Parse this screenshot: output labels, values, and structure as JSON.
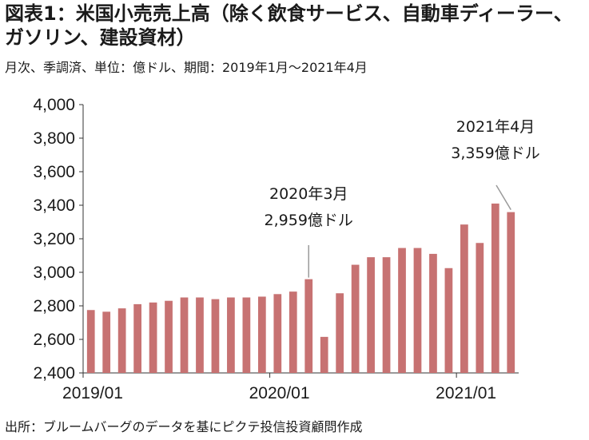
{
  "header": {
    "title": "図表1：米国小売売上高（除く飲食サービス、自動車ディーラー、ガソリン、建設資材）",
    "subtitle": "月次、季調済、単位：億ドル、期間：2019年1月～2021年4月"
  },
  "footer": {
    "source": "出所：ブルームバーグのデータを基にピクテ投信投資顧問作成"
  },
  "colors": {
    "bar": "#c77272",
    "axis": "#333333",
    "leader": "#9a9a9a"
  },
  "chart_data": {
    "type": "bar",
    "categories": [
      "2019/01",
      "2019/02",
      "2019/03",
      "2019/04",
      "2019/05",
      "2019/06",
      "2019/07",
      "2019/08",
      "2019/09",
      "2019/10",
      "2019/11",
      "2019/12",
      "2020/01",
      "2020/02",
      "2020/03",
      "2020/04",
      "2020/05",
      "2020/06",
      "2020/07",
      "2020/08",
      "2020/09",
      "2020/10",
      "2020/11",
      "2020/12",
      "2021/01",
      "2021/02",
      "2021/03",
      "2021/04"
    ],
    "values": [
      2775,
      2765,
      2785,
      2810,
      2820,
      2830,
      2850,
      2850,
      2840,
      2850,
      2850,
      2855,
      2870,
      2885,
      2959,
      2615,
      2875,
      3045,
      3090,
      3090,
      3145,
      3145,
      3110,
      3025,
      3285,
      3175,
      3410,
      3359
    ],
    "ylim": [
      2400,
      4000
    ],
    "yticks": [
      2400,
      2600,
      2800,
      3000,
      3200,
      3400,
      3600,
      3800,
      4000
    ],
    "ytick_labels": [
      "2,400",
      "2,600",
      "2,800",
      "3,000",
      "3,200",
      "3,400",
      "3,600",
      "3,800",
      "4,000"
    ],
    "xtick_labels": [
      {
        "index": 0,
        "label": "2019/01"
      },
      {
        "index": 12,
        "label": "2020/01"
      },
      {
        "index": 24,
        "label": "2021/01"
      }
    ],
    "annotations": [
      {
        "index": 14,
        "lines": [
          "2020年3月",
          "2,959億ドル"
        ]
      },
      {
        "index": 27,
        "lines": [
          "2021年4月",
          "3,359億ドル"
        ]
      }
    ],
    "grid": false,
    "legend": "none"
  }
}
